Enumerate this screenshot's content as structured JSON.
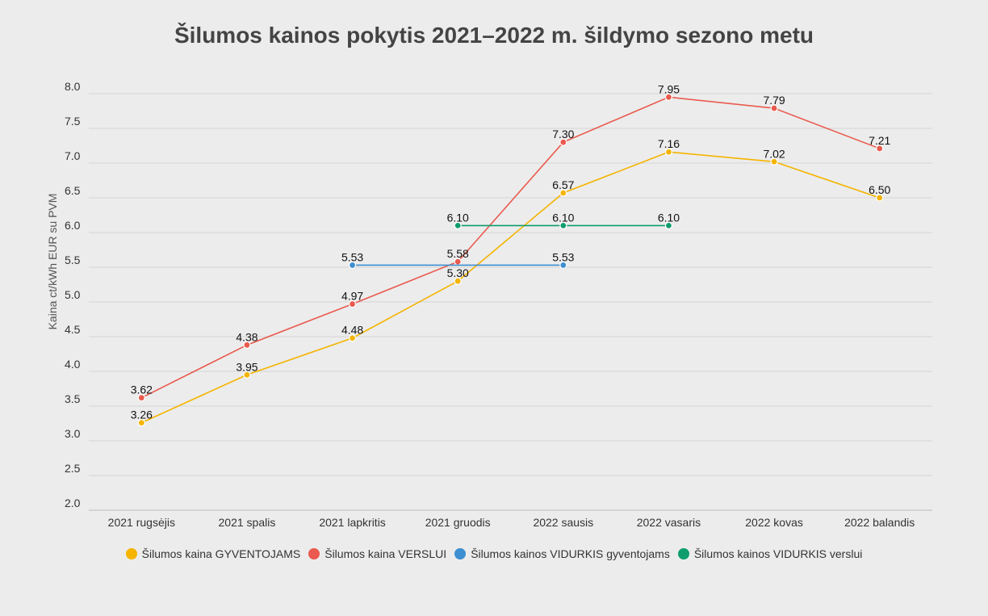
{
  "chart_data": {
    "type": "line",
    "title": "Šilumos kainos pokytis 2021–2022 m. šildymo sezono metu",
    "ylabel": "Kaina ct/kWh EUR su PVM",
    "xlabel": "",
    "ylim": [
      2.0,
      8.0
    ],
    "yticks": [
      "2.0",
      "2.5",
      "3.0",
      "3.5",
      "4.0",
      "4.5",
      "5.0",
      "5.5",
      "6.0",
      "6.5",
      "7.0",
      "7.5",
      "8.0"
    ],
    "categories": [
      "2021 rugsėjis",
      "2021 spalis",
      "2021 lapkritis",
      "2021 gruodis",
      "2022 sausis",
      "2022 vasaris",
      "2022 kovas",
      "2022 balandis"
    ],
    "grid": true,
    "legend_position": "bottom",
    "series": [
      {
        "name": "Šilumos kaina GYVENTOJAMS",
        "color": "#f4b400",
        "values": [
          3.26,
          3.95,
          4.48,
          5.3,
          6.57,
          7.16,
          7.02,
          6.5
        ],
        "labels": [
          "3.26",
          "3.95",
          "4.48",
          "5.30",
          "6.57",
          "7.16",
          "7.02",
          "6.50"
        ]
      },
      {
        "name": "Šilumos kaina VERSLUI",
        "color": "#ea5a4e",
        "values": [
          3.62,
          4.38,
          4.97,
          5.58,
          7.3,
          7.95,
          7.79,
          7.21
        ],
        "labels": [
          "3.62",
          "4.38",
          "4.97",
          "5.58",
          "7.30",
          "7.95",
          "7.79",
          "7.21"
        ]
      },
      {
        "name": "Šilumos kainos VIDURKIS gyventojams",
        "color": "#3d8fd1",
        "values": [
          null,
          null,
          5.53,
          null,
          5.53,
          null,
          null,
          null
        ],
        "labels": [
          null,
          null,
          "5.53",
          null,
          "5.53",
          null,
          null,
          null
        ]
      },
      {
        "name": "Šilumos kainos VIDURKIS verslui",
        "color": "#0f9d6e",
        "values": [
          null,
          null,
          null,
          6.1,
          6.1,
          6.1,
          null,
          null
        ],
        "labels": [
          null,
          null,
          null,
          "6.10",
          "6.10",
          "6.10",
          null,
          null
        ]
      }
    ]
  }
}
